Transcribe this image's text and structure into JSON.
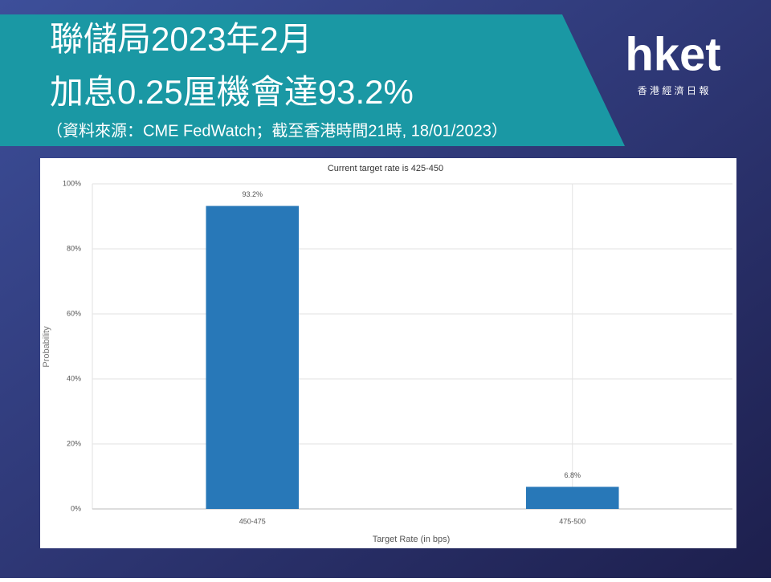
{
  "header": {
    "title_lines": [
      "聯儲局2023年2月",
      "加息0.25厘機會達93.2%"
    ],
    "source": "（資料來源：CME FedWatch；截至香港時間21時, 18/01/2023）"
  },
  "logo": {
    "brand": "hket",
    "tagline": "香 港 經 濟 日 報"
  },
  "chart_data": {
    "type": "bar",
    "title": "Current target rate is 425-450",
    "categories": [
      "450-475",
      "475-500"
    ],
    "values": [
      93.2,
      6.8
    ],
    "value_labels": [
      "93.2%",
      "6.8%"
    ],
    "color": "#2878b8",
    "x_label": "Target Rate (in bps)",
    "y_label": "Probability",
    "ylim": [
      0,
      100
    ],
    "yticks": [
      {
        "value": 0,
        "label": "0%"
      },
      {
        "value": 20,
        "label": "20%"
      },
      {
        "value": 40,
        "label": "40%"
      },
      {
        "value": 60,
        "label": "60%"
      },
      {
        "value": 80,
        "label": "80%"
      },
      {
        "value": 100,
        "label": "100%"
      }
    ],
    "grid": true
  }
}
